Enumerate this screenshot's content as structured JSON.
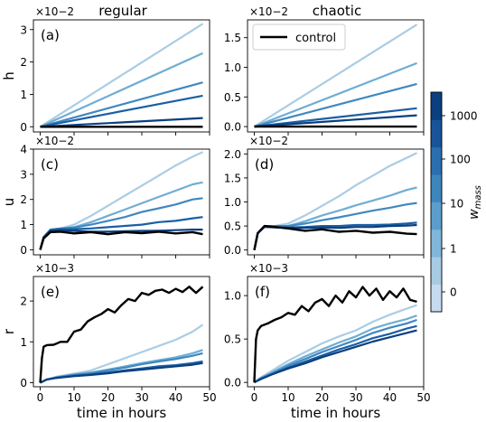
{
  "figure": {
    "columns": [
      {
        "title": "regular"
      },
      {
        "title": "chaotic"
      }
    ],
    "xlabel": "time in hours",
    "legend_label": "control",
    "colorbar": {
      "label": "w",
      "label_sub": "mass",
      "tick_labels": [
        "0",
        "1",
        "10",
        "100",
        "1000"
      ],
      "colors": [
        "#c6dbef",
        "#a6cbe3",
        "#80b6d9",
        "#5b9ecc",
        "#3d86bd",
        "#2a6fb0",
        "#17549a",
        "#0c3f80"
      ]
    },
    "series_colors": [
      "#a9cde5",
      "#6fadd4",
      "#3f88c0",
      "#1a5fa4",
      "#0a3f80"
    ],
    "control_color": "#000000"
  },
  "chart_data": [
    {
      "type": "line",
      "panel_label": "(a)",
      "ylabel": "h",
      "multiplier": "×10−2",
      "column_title": "regular",
      "xlim": [
        -2,
        50
      ],
      "ylim": [
        -0.16,
        3.3
      ],
      "xticks": [
        0,
        10,
        20,
        30,
        40,
        50
      ],
      "yticks": [
        0,
        1,
        2,
        3
      ],
      "series": [
        {
          "role": "blue-1",
          "x": [
            0,
            48
          ],
          "y": [
            0,
            3.18
          ]
        },
        {
          "role": "blue-2",
          "x": [
            0,
            48
          ],
          "y": [
            0,
            2.27
          ]
        },
        {
          "role": "blue-3",
          "x": [
            0,
            48
          ],
          "y": [
            0,
            1.37
          ]
        },
        {
          "role": "blue-4",
          "x": [
            0,
            48
          ],
          "y": [
            0,
            0.96
          ]
        },
        {
          "role": "blue-5",
          "x": [
            0,
            48
          ],
          "y": [
            0,
            0.27
          ]
        },
        {
          "role": "control",
          "x": [
            0,
            48
          ],
          "y": [
            0,
            0
          ]
        }
      ]
    },
    {
      "type": "line",
      "panel_label": "(b)",
      "ylabel": "",
      "multiplier": "×10−2",
      "column_title": "chaotic",
      "xlim": [
        -2,
        50
      ],
      "ylim": [
        -0.09,
        1.8
      ],
      "xticks": [
        0,
        10,
        20,
        30,
        40,
        50
      ],
      "yticks": [
        0,
        0.5,
        1,
        1.5
      ],
      "ytick_labels": [
        "0.0",
        "0.5",
        "1.0",
        "1.5"
      ],
      "legend": true,
      "series": [
        {
          "role": "blue-1",
          "x": [
            0,
            48
          ],
          "y": [
            0,
            1.72
          ]
        },
        {
          "role": "blue-2",
          "x": [
            0,
            48
          ],
          "y": [
            0,
            1.07
          ]
        },
        {
          "role": "blue-3",
          "x": [
            0,
            48
          ],
          "y": [
            0,
            0.72
          ]
        },
        {
          "role": "blue-4",
          "x": [
            0,
            48
          ],
          "y": [
            0,
            0.31
          ]
        },
        {
          "role": "blue-5",
          "x": [
            0,
            48
          ],
          "y": [
            0,
            0.19
          ]
        },
        {
          "role": "control",
          "x": [
            0,
            48
          ],
          "y": [
            0,
            0
          ]
        }
      ]
    },
    {
      "type": "line",
      "panel_label": "(c)",
      "ylabel": "u",
      "multiplier": "×10−2",
      "xlim": [
        -2,
        50
      ],
      "ylim": [
        -0.2,
        4.0
      ],
      "xticks": [
        0,
        10,
        20,
        30,
        40,
        50
      ],
      "yticks": [
        0,
        1,
        2,
        3,
        4
      ],
      "series": [
        {
          "role": "blue-1",
          "x": [
            0,
            1,
            3,
            6,
            10,
            15,
            20,
            25,
            30,
            35,
            40,
            45,
            48
          ],
          "y": [
            0,
            0.5,
            0.8,
            0.85,
            1.0,
            1.35,
            1.75,
            2.15,
            2.55,
            2.95,
            3.35,
            3.7,
            3.88
          ]
        },
        {
          "role": "blue-2",
          "x": [
            0,
            1,
            3,
            6,
            10,
            15,
            20,
            25,
            30,
            35,
            40,
            45,
            48
          ],
          "y": [
            0,
            0.5,
            0.8,
            0.85,
            0.9,
            1.1,
            1.35,
            1.6,
            1.85,
            2.1,
            2.35,
            2.6,
            2.68
          ]
        },
        {
          "role": "blue-3",
          "x": [
            0,
            1,
            3,
            6,
            10,
            15,
            20,
            25,
            30,
            35,
            40,
            45,
            48
          ],
          "y": [
            0,
            0.5,
            0.8,
            0.85,
            0.88,
            1.0,
            1.15,
            1.3,
            1.5,
            1.65,
            1.8,
            2.0,
            2.05
          ]
        },
        {
          "role": "blue-4",
          "x": [
            0,
            1,
            3,
            6,
            10,
            15,
            20,
            25,
            30,
            35,
            40,
            45,
            48
          ],
          "y": [
            0,
            0.5,
            0.78,
            0.82,
            0.82,
            0.85,
            0.9,
            0.95,
            1.0,
            1.1,
            1.15,
            1.25,
            1.3
          ]
        },
        {
          "role": "blue-5",
          "x": [
            0,
            1,
            3,
            6,
            10,
            15,
            20,
            25,
            30,
            35,
            40,
            45,
            48
          ],
          "y": [
            0,
            0.5,
            0.75,
            0.78,
            0.75,
            0.72,
            0.72,
            0.74,
            0.75,
            0.76,
            0.78,
            0.8,
            0.8
          ]
        },
        {
          "role": "control",
          "x": [
            0,
            1,
            3,
            6,
            10,
            15,
            20,
            25,
            30,
            35,
            40,
            45,
            48
          ],
          "y": [
            0,
            0.45,
            0.7,
            0.72,
            0.65,
            0.7,
            0.62,
            0.7,
            0.66,
            0.72,
            0.65,
            0.7,
            0.62
          ]
        }
      ]
    },
    {
      "type": "line",
      "panel_label": "(d)",
      "ylabel": "",
      "multiplier": "×10−2",
      "xlim": [
        -2,
        50
      ],
      "ylim": [
        -0.1,
        2.1
      ],
      "xticks": [
        0,
        10,
        20,
        30,
        40,
        50
      ],
      "yticks": [
        0,
        0.5,
        1,
        1.5,
        2
      ],
      "ytick_labels": [
        "0.0",
        "0.5",
        "1.0",
        "1.5",
        "2.0"
      ],
      "series": [
        {
          "role": "blue-1",
          "x": [
            0,
            1,
            3,
            6,
            10,
            15,
            20,
            25,
            30,
            35,
            40,
            45,
            48
          ],
          "y": [
            0,
            0.35,
            0.5,
            0.5,
            0.55,
            0.72,
            0.92,
            1.12,
            1.35,
            1.55,
            1.75,
            1.92,
            2.02
          ]
        },
        {
          "role": "blue-2",
          "x": [
            0,
            1,
            3,
            6,
            10,
            15,
            20,
            25,
            30,
            35,
            40,
            45,
            48
          ],
          "y": [
            0,
            0.35,
            0.5,
            0.5,
            0.5,
            0.6,
            0.72,
            0.82,
            0.93,
            1.03,
            1.13,
            1.25,
            1.3
          ]
        },
        {
          "role": "blue-3",
          "x": [
            0,
            1,
            3,
            6,
            10,
            15,
            20,
            25,
            30,
            35,
            40,
            45,
            48
          ],
          "y": [
            0,
            0.35,
            0.5,
            0.5,
            0.5,
            0.55,
            0.62,
            0.68,
            0.75,
            0.82,
            0.88,
            0.95,
            0.98
          ]
        },
        {
          "role": "blue-4",
          "x": [
            0,
            1,
            3,
            6,
            10,
            15,
            20,
            25,
            30,
            35,
            40,
            45,
            48
          ],
          "y": [
            0,
            0.35,
            0.5,
            0.48,
            0.47,
            0.48,
            0.5,
            0.5,
            0.52,
            0.52,
            0.53,
            0.55,
            0.57
          ]
        },
        {
          "role": "blue-5",
          "x": [
            0,
            1,
            3,
            6,
            10,
            15,
            20,
            25,
            30,
            35,
            40,
            45,
            48
          ],
          "y": [
            0,
            0.35,
            0.48,
            0.47,
            0.46,
            0.46,
            0.47,
            0.46,
            0.48,
            0.48,
            0.5,
            0.51,
            0.52
          ]
        },
        {
          "role": "control",
          "x": [
            0,
            1,
            3,
            6,
            10,
            15,
            20,
            25,
            30,
            35,
            40,
            45,
            48
          ],
          "y": [
            0,
            0.35,
            0.5,
            0.48,
            0.45,
            0.4,
            0.43,
            0.38,
            0.4,
            0.36,
            0.38,
            0.34,
            0.33
          ]
        }
      ]
    },
    {
      "type": "line",
      "panel_label": "(e)",
      "ylabel": "r",
      "multiplier": "×10−3",
      "xlim": [
        -2,
        50
      ],
      "ylim": [
        -0.1,
        2.6
      ],
      "xlabel": "time in hours",
      "xticks": [
        0,
        10,
        20,
        30,
        40,
        50
      ],
      "yticks": [
        0,
        1,
        2
      ],
      "series": [
        {
          "role": "blue-1",
          "x": [
            0,
            2,
            5,
            10,
            15,
            20,
            25,
            30,
            35,
            40,
            45,
            48
          ],
          "y": [
            0,
            0.08,
            0.15,
            0.22,
            0.3,
            0.45,
            0.6,
            0.75,
            0.9,
            1.05,
            1.25,
            1.42
          ]
        },
        {
          "role": "blue-2",
          "x": [
            0,
            2,
            5,
            10,
            15,
            20,
            25,
            30,
            35,
            40,
            45,
            48
          ],
          "y": [
            0,
            0.08,
            0.14,
            0.2,
            0.25,
            0.32,
            0.4,
            0.48,
            0.55,
            0.62,
            0.72,
            0.8
          ]
        },
        {
          "role": "blue-3",
          "x": [
            0,
            2,
            5,
            10,
            15,
            20,
            25,
            30,
            35,
            40,
            45,
            48
          ],
          "y": [
            0,
            0.08,
            0.13,
            0.19,
            0.23,
            0.3,
            0.37,
            0.45,
            0.52,
            0.58,
            0.66,
            0.72
          ]
        },
        {
          "role": "blue-4",
          "x": [
            0,
            2,
            5,
            10,
            15,
            20,
            25,
            30,
            35,
            40,
            45,
            48
          ],
          "y": [
            0,
            0.08,
            0.12,
            0.17,
            0.2,
            0.25,
            0.3,
            0.35,
            0.4,
            0.43,
            0.48,
            0.52
          ]
        },
        {
          "role": "blue-5",
          "x": [
            0,
            2,
            5,
            10,
            15,
            20,
            25,
            30,
            35,
            40,
            45,
            48
          ],
          "y": [
            0,
            0.08,
            0.12,
            0.16,
            0.19,
            0.23,
            0.28,
            0.32,
            0.36,
            0.4,
            0.44,
            0.48
          ]
        },
        {
          "role": "control",
          "x": [
            0,
            0.5,
            1,
            2,
            4,
            6,
            8,
            10,
            12,
            14,
            16,
            18,
            20,
            22,
            24,
            26,
            28,
            30,
            32,
            34,
            36,
            38,
            40,
            42,
            44,
            46,
            48
          ],
          "y": [
            0,
            0.6,
            0.88,
            0.92,
            0.93,
            1.0,
            1.0,
            1.25,
            1.3,
            1.5,
            1.6,
            1.68,
            1.8,
            1.72,
            1.9,
            2.05,
            2.0,
            2.2,
            2.15,
            2.25,
            2.28,
            2.2,
            2.3,
            2.22,
            2.35,
            2.2,
            2.35
          ]
        }
      ]
    },
    {
      "type": "line",
      "panel_label": "(f)",
      "ylabel": "",
      "multiplier": "×10−3",
      "xlim": [
        -2,
        50
      ],
      "ylim": [
        -0.05,
        1.22
      ],
      "xlabel": "time in hours",
      "xticks": [
        0,
        10,
        20,
        30,
        40,
        50
      ],
      "yticks": [
        0,
        0.5,
        1
      ],
      "ytick_labels": [
        "0.0",
        "0.5",
        "1.0"
      ],
      "series": [
        {
          "role": "blue-1",
          "x": [
            0,
            2,
            5,
            10,
            15,
            20,
            25,
            30,
            35,
            40,
            45,
            48
          ],
          "y": [
            0,
            0.06,
            0.13,
            0.25,
            0.35,
            0.45,
            0.53,
            0.6,
            0.7,
            0.78,
            0.85,
            0.89
          ]
        },
        {
          "role": "blue-2",
          "x": [
            0,
            2,
            5,
            10,
            15,
            20,
            25,
            30,
            35,
            40,
            45,
            48
          ],
          "y": [
            0,
            0.05,
            0.11,
            0.21,
            0.3,
            0.38,
            0.46,
            0.53,
            0.62,
            0.68,
            0.73,
            0.77
          ]
        },
        {
          "role": "blue-3",
          "x": [
            0,
            2,
            5,
            10,
            15,
            20,
            25,
            30,
            35,
            40,
            45,
            48
          ],
          "y": [
            0,
            0.05,
            0.1,
            0.19,
            0.27,
            0.35,
            0.42,
            0.49,
            0.57,
            0.63,
            0.68,
            0.72
          ]
        },
        {
          "role": "blue-4",
          "x": [
            0,
            2,
            5,
            10,
            15,
            20,
            25,
            30,
            35,
            40,
            45,
            48
          ],
          "y": [
            0,
            0.04,
            0.09,
            0.17,
            0.24,
            0.31,
            0.38,
            0.44,
            0.51,
            0.56,
            0.62,
            0.65
          ]
        },
        {
          "role": "blue-5",
          "x": [
            0,
            2,
            5,
            10,
            15,
            20,
            25,
            30,
            35,
            40,
            45,
            48
          ],
          "y": [
            0,
            0.04,
            0.09,
            0.16,
            0.22,
            0.29,
            0.35,
            0.41,
            0.47,
            0.52,
            0.57,
            0.6
          ]
        },
        {
          "role": "control",
          "x": [
            0,
            0.5,
            1,
            2,
            4,
            6,
            8,
            10,
            12,
            14,
            16,
            18,
            20,
            22,
            24,
            26,
            28,
            30,
            32,
            34,
            36,
            38,
            40,
            42,
            44,
            46,
            48
          ],
          "y": [
            0,
            0.5,
            0.6,
            0.65,
            0.68,
            0.72,
            0.75,
            0.8,
            0.78,
            0.88,
            0.82,
            0.92,
            0.96,
            0.88,
            1.0,
            0.92,
            1.05,
            0.98,
            1.1,
            1.0,
            1.08,
            0.95,
            1.05,
            0.98,
            1.08,
            0.95,
            0.93
          ]
        }
      ]
    }
  ]
}
